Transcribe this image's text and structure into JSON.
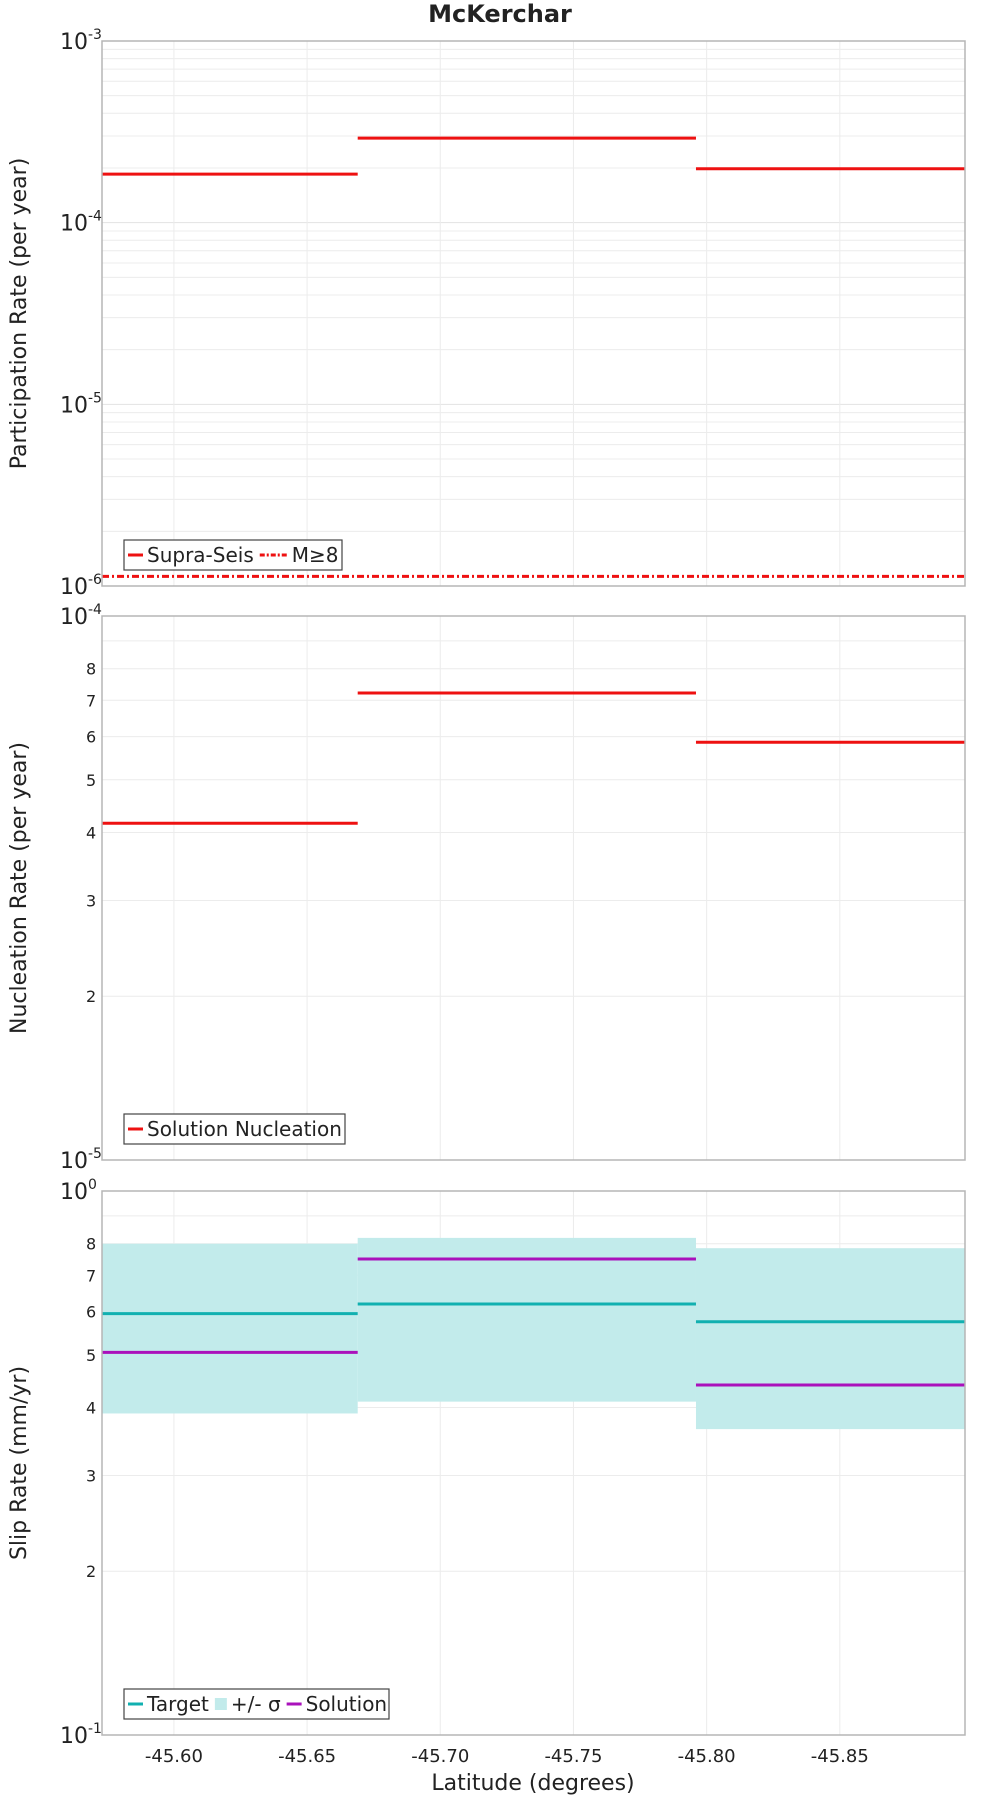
{
  "chart_data": [
    {
      "type": "line",
      "title": "McKerchar",
      "ylabel": "Participation Rate (per year)",
      "xlabel": "",
      "yscale": "log",
      "ylim": [
        1e-06,
        0.001
      ],
      "xlim": [
        -45.573,
        -45.897
      ],
      "x_ticks": [
        -45.6,
        -45.65,
        -45.7,
        -45.75,
        -45.8,
        -45.85
      ],
      "x_tick_labels": [
        "-45.60",
        "-45.65",
        "-45.70",
        "-45.75",
        "-45.80",
        "-45.85"
      ],
      "y_major_ticks": [
        {
          "value": 1e-06,
          "base": "10",
          "exp": "-6"
        },
        {
          "value": 1e-05,
          "base": "10",
          "exp": "-5"
        },
        {
          "value": 0.0001,
          "base": "10",
          "exp": "-4"
        },
        {
          "value": 0.001,
          "base": "10",
          "exp": "-3"
        }
      ],
      "y_minor_labels": [],
      "grid": true,
      "legend_position": "bottom-left",
      "legend": [
        {
          "label": "Supra-Seis",
          "style": "solid",
          "color": "#ee1111"
        },
        {
          "label": "M≥8",
          "style": "dashdot",
          "color": "#ee1111"
        }
      ],
      "series": [
        {
          "name": "Supra-Seis",
          "color": "#ee1111",
          "style": "solid",
          "segments": [
            {
              "x0": -45.573,
              "x1": -45.669,
              "y": 0.000185
            },
            {
              "x0": -45.669,
              "x1": -45.796,
              "y": 0.000292
            },
            {
              "x0": -45.796,
              "x1": -45.897,
              "y": 0.000198
            }
          ]
        },
        {
          "name": "M≥8",
          "color": "#ee1111",
          "style": "dashdot",
          "segments": [
            {
              "x0": -45.573,
              "x1": -45.897,
              "y": 1.13e-06
            }
          ]
        }
      ]
    },
    {
      "type": "line",
      "title": "",
      "ylabel": "Nucleation Rate (per year)",
      "xlabel": "",
      "yscale": "log",
      "ylim": [
        1e-05,
        0.0001
      ],
      "xlim": [
        -45.573,
        -45.897
      ],
      "x_ticks": [
        -45.6,
        -45.65,
        -45.7,
        -45.75,
        -45.8,
        -45.85
      ],
      "x_tick_labels": [],
      "y_major_ticks": [
        {
          "value": 1e-05,
          "base": "10",
          "exp": "-5"
        },
        {
          "value": 0.0001,
          "base": "10",
          "exp": "-4"
        }
      ],
      "y_minor_labels": [
        {
          "value": 2e-05,
          "label": "2"
        },
        {
          "value": 3e-05,
          "label": "3"
        },
        {
          "value": 4e-05,
          "label": "4"
        },
        {
          "value": 5e-05,
          "label": "5"
        },
        {
          "value": 6e-05,
          "label": "6"
        },
        {
          "value": 7e-05,
          "label": "7"
        },
        {
          "value": 8e-05,
          "label": "8"
        }
      ],
      "grid": true,
      "legend_position": "bottom-left",
      "legend": [
        {
          "label": "Solution Nucleation",
          "style": "solid",
          "color": "#ee1111"
        }
      ],
      "series": [
        {
          "name": "Solution Nucleation",
          "color": "#ee1111",
          "style": "solid",
          "segments": [
            {
              "x0": -45.573,
              "x1": -45.669,
              "y": 4.16e-05
            },
            {
              "x0": -45.669,
              "x1": -45.796,
              "y": 7.22e-05
            },
            {
              "x0": -45.796,
              "x1": -45.897,
              "y": 5.86e-05
            }
          ]
        }
      ]
    },
    {
      "type": "line",
      "title": "",
      "ylabel": "Slip Rate (mm/yr)",
      "xlabel": "Latitude (degrees)",
      "yscale": "log",
      "ylim": [
        0.1,
        1
      ],
      "xlim": [
        -45.573,
        -45.897
      ],
      "x_ticks": [
        -45.6,
        -45.65,
        -45.7,
        -45.75,
        -45.8,
        -45.85
      ],
      "x_tick_labels": [
        "-45.60",
        "-45.65",
        "-45.70",
        "-45.75",
        "-45.80",
        "-45.85"
      ],
      "y_major_ticks": [
        {
          "value": 0.1,
          "base": "10",
          "exp": "-1"
        },
        {
          "value": 1,
          "base": "10",
          "exp": "0"
        }
      ],
      "y_minor_labels": [
        {
          "value": 0.2,
          "label": "2"
        },
        {
          "value": 0.3,
          "label": "3"
        },
        {
          "value": 0.4,
          "label": "4"
        },
        {
          "value": 0.5,
          "label": "5"
        },
        {
          "value": 0.6,
          "label": "6"
        },
        {
          "value": 0.7,
          "label": "7"
        },
        {
          "value": 0.8,
          "label": "8"
        }
      ],
      "grid": true,
      "legend_position": "bottom-left",
      "legend": [
        {
          "label": "Target",
          "style": "solid",
          "color": "#11b0b0"
        },
        {
          "label": "+/- σ",
          "style": "fill",
          "color": "#c2ebeb"
        },
        {
          "label": "Solution",
          "style": "solid",
          "color": "#aa11bb"
        }
      ],
      "bands": [
        {
          "name": "+/- σ",
          "color": "#c2ebeb",
          "segments": [
            {
              "x0": -45.573,
              "x1": -45.669,
              "low": 0.39,
              "high": 0.8
            },
            {
              "x0": -45.669,
              "x1": -45.796,
              "low": 0.41,
              "high": 0.82
            },
            {
              "x0": -45.796,
              "x1": -45.897,
              "low": 0.365,
              "high": 0.785
            }
          ]
        }
      ],
      "series": [
        {
          "name": "Target",
          "color": "#11b0b0",
          "style": "solid",
          "segments": [
            {
              "x0": -45.573,
              "x1": -45.669,
              "y": 0.595
            },
            {
              "x0": -45.669,
              "x1": -45.796,
              "y": 0.62
            },
            {
              "x0": -45.796,
              "x1": -45.897,
              "y": 0.575
            }
          ]
        },
        {
          "name": "Solution",
          "color": "#aa11bb",
          "style": "solid",
          "segments": [
            {
              "x0": -45.573,
              "x1": -45.669,
              "y": 0.505
            },
            {
              "x0": -45.669,
              "x1": -45.796,
              "y": 0.75
            },
            {
              "x0": -45.796,
              "x1": -45.897,
              "y": 0.44
            }
          ]
        }
      ]
    }
  ]
}
